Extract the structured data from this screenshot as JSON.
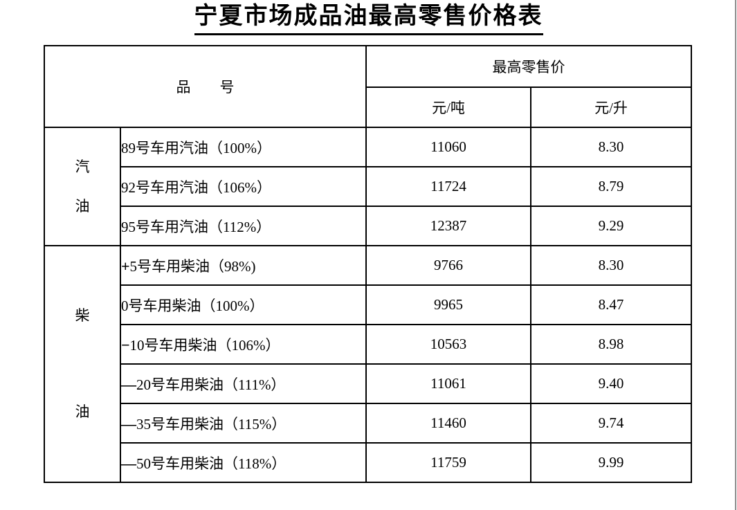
{
  "page": {
    "background": "#ffffff",
    "right_edge_color": "#8c8c8c"
  },
  "title": "宁夏市场成品油最高零售价格表",
  "table": {
    "header": {
      "product_label": "品　　号",
      "price_label": "最高零售价",
      "unit_per_ton": "元/吨",
      "unit_per_liter": "元/升"
    },
    "groups": [
      {
        "label": "汽油",
        "label_chars": {
          "top": "汽",
          "bottom": "油"
        },
        "rows": [
          {
            "prefix": "",
            "name": "89号车用汽油（100%）",
            "per_ton": "11060",
            "per_liter": "8.30"
          },
          {
            "prefix": "",
            "name": "92号车用汽油（106%）",
            "per_ton": "11724",
            "per_liter": "8.79"
          },
          {
            "prefix": "",
            "name": "95号车用汽油（112%）",
            "per_ton": "12387",
            "per_liter": "9.29"
          }
        ]
      },
      {
        "label": "柴油",
        "label_chars": {
          "top": "柴",
          "bottom": "油"
        },
        "rows": [
          {
            "prefix": "+",
            "name": "5号车用柴油（98%)",
            "per_ton": "9766",
            "per_liter": "8.30"
          },
          {
            "prefix": "",
            "name": "0号车用柴油（100%）",
            "per_ton": "9965",
            "per_liter": "8.47"
          },
          {
            "prefix": "−",
            "name": "10号车用柴油（106%）",
            "per_ton": "10563",
            "per_liter": "8.98"
          },
          {
            "prefix": "—",
            "name": "20号车用柴油（111%）",
            "per_ton": "11061",
            "per_liter": "9.40"
          },
          {
            "prefix": "—",
            "name": "35号车用柴油（115%）",
            "per_ton": "11460",
            "per_liter": "9.74"
          },
          {
            "prefix": "—",
            "name": "50号车用柴油（118%）",
            "per_ton": "11759",
            "per_liter": "9.99"
          }
        ]
      }
    ]
  }
}
